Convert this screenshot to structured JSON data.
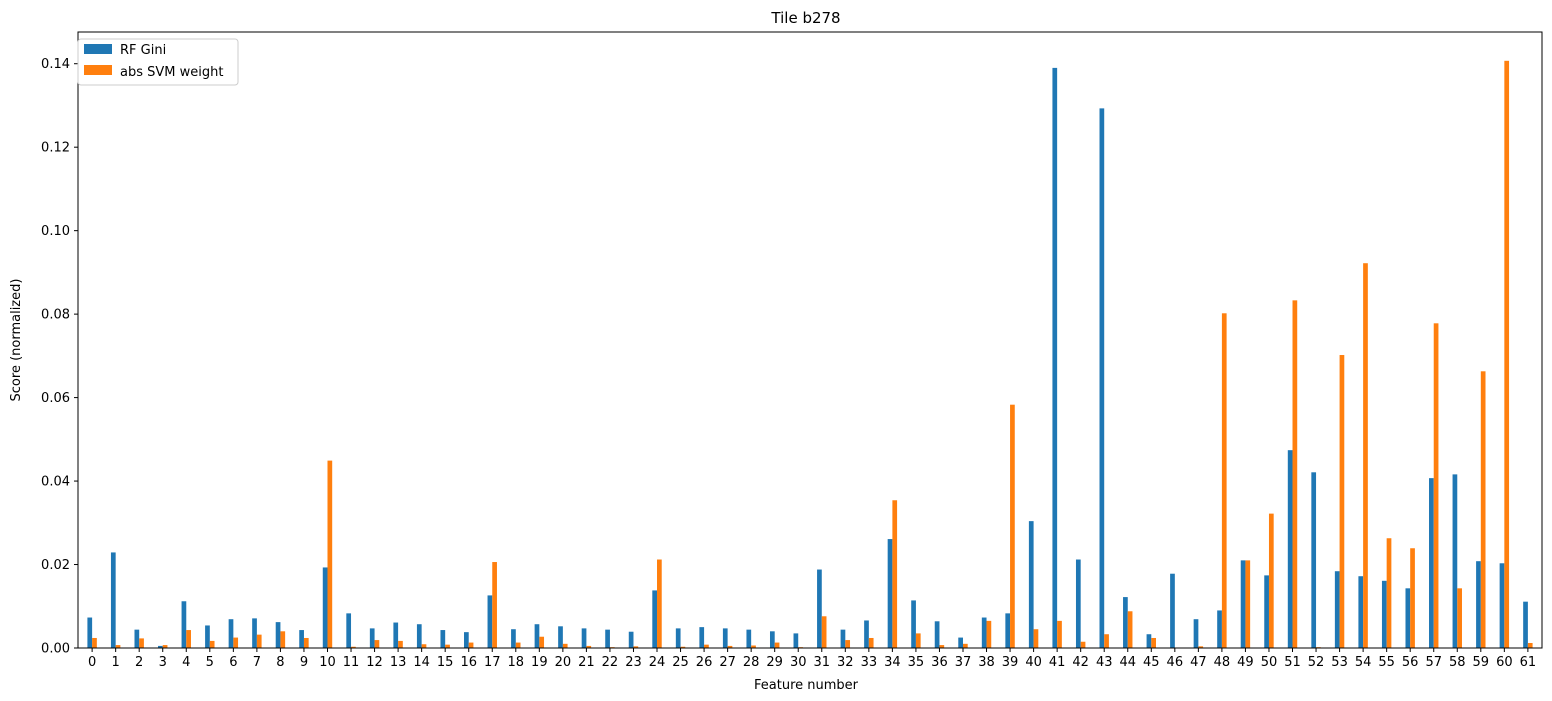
{
  "chart_data": {
    "type": "bar",
    "title": "Tile b278",
    "xlabel": "Feature number",
    "ylabel": "Score (normalized)",
    "ylim": [
      0,
      0.1476
    ],
    "yticks": [
      0.0,
      0.02,
      0.04,
      0.06,
      0.08,
      0.1,
      0.12,
      0.14
    ],
    "ytick_labels": [
      "0.00",
      "0.02",
      "0.04",
      "0.06",
      "0.08",
      "0.10",
      "0.12",
      "0.14"
    ],
    "grid": false,
    "legend_position": "top-left",
    "categories": [
      "0",
      "1",
      "2",
      "3",
      "4",
      "5",
      "6",
      "7",
      "8",
      "9",
      "10",
      "11",
      "12",
      "13",
      "14",
      "15",
      "16",
      "17",
      "18",
      "19",
      "20",
      "21",
      "22",
      "23",
      "24",
      "25",
      "26",
      "27",
      "28",
      "29",
      "30",
      "31",
      "32",
      "33",
      "34",
      "35",
      "36",
      "37",
      "38",
      "39",
      "40",
      "41",
      "42",
      "43",
      "44",
      "45",
      "46",
      "47",
      "48",
      "49",
      "50",
      "51",
      "52",
      "53",
      "54",
      "55",
      "56",
      "57",
      "58",
      "59",
      "60",
      "61"
    ],
    "series": [
      {
        "name": "RF Gini",
        "color": "#1f77b4",
        "values": [
          0.0073,
          0.0229,
          0.0044,
          0.0005,
          0.0112,
          0.0054,
          0.0069,
          0.0071,
          0.0062,
          0.0043,
          0.0193,
          0.0083,
          0.0047,
          0.0061,
          0.0057,
          0.0043,
          0.0038,
          0.0126,
          0.0045,
          0.0057,
          0.0052,
          0.0047,
          0.0044,
          0.0039,
          0.0138,
          0.0047,
          0.005,
          0.0047,
          0.0044,
          0.004,
          0.0035,
          0.0188,
          0.0044,
          0.0066,
          0.0261,
          0.0114,
          0.0064,
          0.0025,
          0.0073,
          0.0083,
          0.0304,
          0.139,
          0.0212,
          0.1293,
          0.0122,
          0.0033,
          0.0178,
          0.0069,
          0.009,
          0.021,
          0.0174,
          0.0474,
          0.0421,
          0.0184,
          0.0172,
          0.0161,
          0.0143,
          0.0407,
          0.0416,
          0.0208,
          0.0203,
          0.0111
        ]
      },
      {
        "name": "abs SVM weight",
        "color": "#ff7f0e",
        "values": [
          0.0024,
          0.0007,
          0.0023,
          0.0007,
          0.0043,
          0.0017,
          0.0025,
          0.0032,
          0.004,
          0.0024,
          0.0449,
          0.0003,
          0.0019,
          0.0017,
          0.0009,
          0.0008,
          0.0013,
          0.0206,
          0.0013,
          0.0027,
          0.001,
          0.0005,
          0.0002,
          0.0004,
          0.0212,
          0.0003,
          0.0008,
          0.0005,
          0.0006,
          0.0013,
          0.0002,
          0.0076,
          0.0019,
          0.0024,
          0.0354,
          0.0035,
          0.0007,
          0.001,
          0.0065,
          0.0583,
          0.0045,
          0.0065,
          0.0015,
          0.0033,
          0.0088,
          0.0024,
          0.0001,
          0.0004,
          0.0802,
          0.021,
          0.0322,
          0.0833,
          0.0002,
          0.0702,
          0.0922,
          0.0263,
          0.0239,
          0.0778,
          0.0143,
          0.0663,
          0.1407,
          0.0012
        ]
      }
    ]
  }
}
